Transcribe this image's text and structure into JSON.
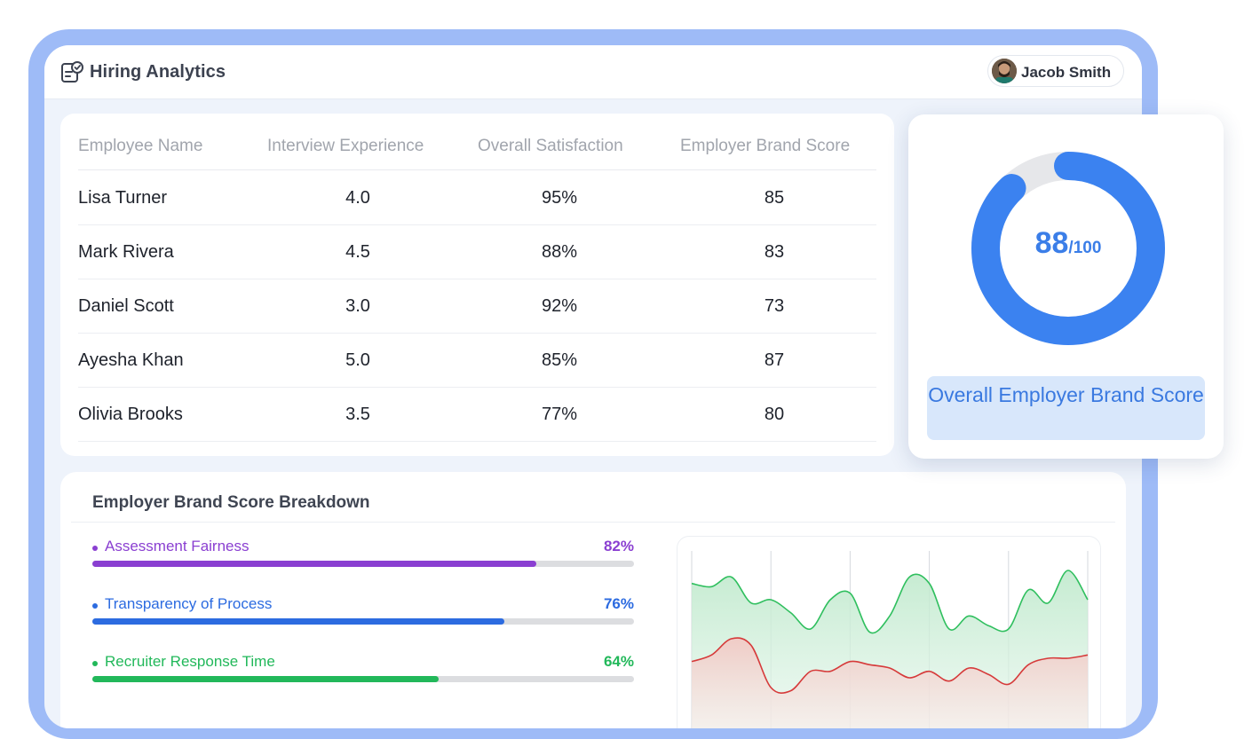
{
  "header": {
    "app_title": "Hiring Analytics",
    "app_icon": "clipboard-check-icon",
    "user_name": "Jacob Smith"
  },
  "table": {
    "columns": [
      "Employee Name",
      "Interview Experience",
      "Overall Satisfaction",
      "Employer Brand Score"
    ],
    "rows": [
      {
        "name": "Lisa Turner",
        "interview": "4.0",
        "satisfaction": "95%",
        "brand": "85"
      },
      {
        "name": "Mark Rivera",
        "interview": "4.5",
        "satisfaction": "88%",
        "brand": "83"
      },
      {
        "name": "Daniel Scott",
        "interview": "3.0",
        "satisfaction": "92%",
        "brand": "73"
      },
      {
        "name": "Ayesha Khan",
        "interview": "5.0",
        "satisfaction": "85%",
        "brand": "87"
      },
      {
        "name": "Olivia Brooks",
        "interview": "3.5",
        "satisfaction": "77%",
        "brand": "80"
      }
    ]
  },
  "score": {
    "value": "88",
    "max": "/100",
    "fraction": 0.88,
    "label": "Overall Employer Brand Score",
    "color": "#3b82f0",
    "track_color": "#e6e7ea"
  },
  "breakdown": {
    "title": "Employer Brand Score Breakdown",
    "metrics": [
      {
        "label": "Assessment Fairness",
        "value": "82%",
        "fraction": 0.82,
        "color": "#8a3fd1"
      },
      {
        "label": "Transparency of Process",
        "value": "76%",
        "fraction": 0.76,
        "color": "#2c6be0"
      },
      {
        "label": "Recruiter Response Time",
        "value": "64%",
        "fraction": 0.64,
        "color": "#22b85a"
      }
    ]
  },
  "chart_data": {
    "type": "area",
    "x": [
      0,
      1,
      2,
      3,
      4,
      5,
      6,
      7,
      8,
      9,
      10,
      11,
      12,
      13,
      14,
      15,
      16,
      17,
      18,
      19,
      20
    ],
    "series": [
      {
        "values": [
          40,
          38,
          44,
          28,
          30,
          22,
          12,
          30,
          34,
          10,
          20,
          44,
          40,
          12,
          20,
          14,
          12,
          36,
          28,
          48,
          30
        ],
        "color": "#2fbf5e"
      },
      {
        "values": [
          -8,
          -4,
          6,
          2,
          -24,
          -26,
          -14,
          -14,
          -8,
          -10,
          -12,
          -18,
          -14,
          -20,
          -12,
          -16,
          -22,
          -10,
          -6,
          -6,
          -4
        ],
        "color": "#d63a3a"
      }
    ],
    "ylim": [
      -60,
      60
    ],
    "grid": "vertical"
  }
}
